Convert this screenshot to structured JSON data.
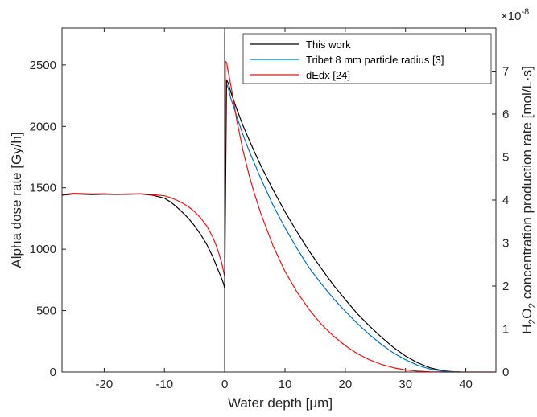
{
  "chart_data": {
    "type": "line",
    "xlabel": "Water depth [μm]",
    "ylabel_left": "Alpha dose rate [Gy/h]",
    "ylabel_right_parts": [
      "H",
      "2",
      "O",
      "2",
      " concentration production rate [mol/L·s]"
    ],
    "right_axis_multiplier": "×10",
    "right_axis_multiplier_exp": "-8",
    "xlim": [
      -27,
      45
    ],
    "ylim_left": [
      0,
      2800
    ],
    "ylim_right": [
      0,
      8
    ],
    "x_ticks": [
      -20,
      -10,
      0,
      10,
      20,
      30,
      40
    ],
    "x_tick_labels": [
      "-20",
      "-10",
      "0",
      "10",
      "20",
      "30",
      "40"
    ],
    "y_left_ticks": [
      0,
      500,
      1000,
      1500,
      2000,
      2500
    ],
    "y_left_tick_labels": [
      "0",
      "500",
      "1000",
      "1500",
      "2000",
      "2500"
    ],
    "y_right_ticks": [
      0,
      1,
      2,
      3,
      4,
      5,
      6,
      7
    ],
    "y_right_tick_labels": [
      "0",
      "1",
      "2",
      "3",
      "4",
      "5",
      "6",
      "7"
    ],
    "legend_position": "top-right",
    "series": [
      {
        "name": "This work",
        "color": "#000000",
        "x": [
          -27,
          -25,
          -22,
          -20,
          -18,
          -16,
          -14,
          -12,
          -10,
          -9,
          -8,
          -7,
          -6,
          -5,
          -4,
          -3,
          -2,
          -1.5,
          -1,
          -0.5,
          -0.2,
          0,
          0.3,
          0.6,
          1,
          2,
          3,
          4,
          5,
          6,
          8,
          10,
          12,
          14,
          16,
          18,
          20,
          22,
          24,
          26,
          28,
          30,
          32,
          34,
          36,
          38,
          39
        ],
        "y": [
          1440,
          1450,
          1445,
          1448,
          1446,
          1447,
          1450,
          1440,
          1415,
          1385,
          1345,
          1300,
          1250,
          1190,
          1120,
          1040,
          940,
          880,
          820,
          760,
          720,
          680,
          2380,
          2350,
          2280,
          2140,
          2010,
          1895,
          1785,
          1680,
          1485,
          1305,
          1140,
          985,
          845,
          710,
          590,
          475,
          375,
          283,
          200,
          130,
          75,
          35,
          12,
          2,
          0
        ]
      },
      {
        "name": "Tribet 8 mm particle radius [3]",
        "color": "#0072bd",
        "x": [
          0.3,
          0.6,
          1,
          2,
          3,
          4,
          5,
          6,
          8,
          10,
          12,
          14,
          16,
          18,
          20,
          22,
          24,
          26,
          28,
          30,
          32,
          34,
          36,
          38,
          39
        ],
        "y": [
          2350,
          2310,
          2230,
          2080,
          1935,
          1805,
          1690,
          1575,
          1360,
          1175,
          1005,
          850,
          720,
          600,
          495,
          395,
          305,
          225,
          155,
          100,
          55,
          25,
          8,
          1,
          0
        ]
      },
      {
        "name": "dEdx [24]",
        "color": "#e8141c",
        "x": [
          -27,
          -25,
          -22,
          -20,
          -18,
          -16,
          -14,
          -12,
          -10,
          -9,
          -8,
          -7,
          -6,
          -5,
          -4,
          -3,
          -2,
          -1.5,
          -1,
          -0.5,
          -0.2,
          0,
          0.1,
          0.3,
          0.6,
          1,
          2,
          3,
          4,
          5,
          6,
          8,
          10,
          12,
          14,
          16,
          18,
          20,
          22,
          24,
          26,
          28,
          30,
          32,
          34,
          36,
          38,
          40,
          45
        ],
        "y": [
          1445,
          1455,
          1450,
          1452,
          1448,
          1450,
          1452,
          1445,
          1435,
          1420,
          1400,
          1375,
          1345,
          1305,
          1255,
          1190,
          1100,
          1040,
          970,
          890,
          820,
          780,
          2530,
          2520,
          2440,
          2340,
          2050,
          1810,
          1610,
          1440,
          1290,
          1030,
          820,
          650,
          510,
          390,
          295,
          215,
          150,
          100,
          62,
          35,
          17,
          7,
          2,
          0,
          0,
          0,
          0
        ]
      }
    ]
  }
}
